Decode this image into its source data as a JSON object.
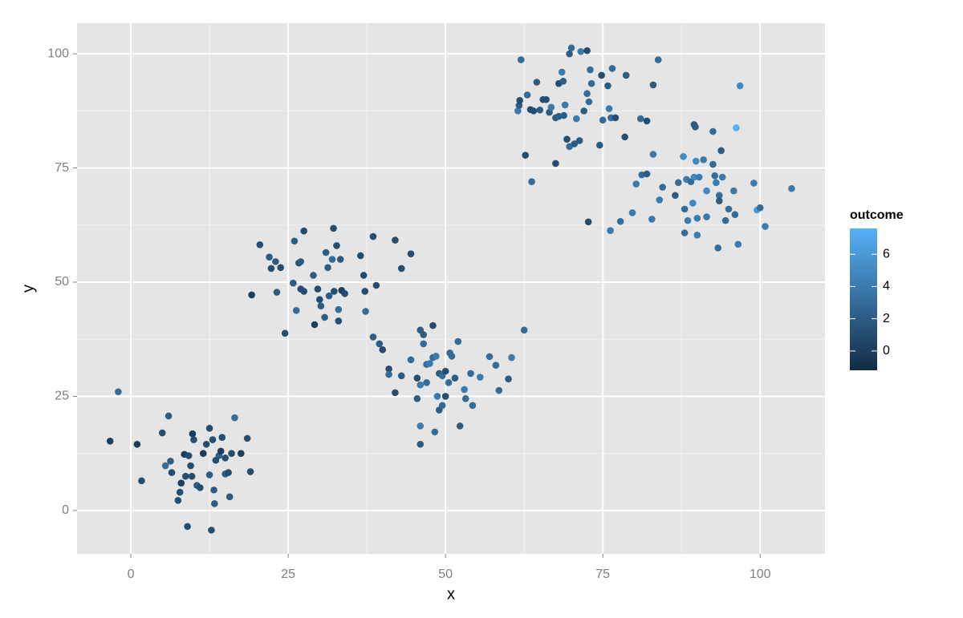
{
  "chart_data": {
    "type": "scatter",
    "xlabel": "x",
    "ylabel": "y",
    "legend_title": "outcome",
    "xlim": [
      -8.55,
      110.3
    ],
    "ylim": [
      -9.5,
      106.7
    ],
    "xticks": [
      0,
      25,
      50,
      75,
      100
    ],
    "yticks": [
      0,
      25,
      50,
      75,
      100
    ],
    "grid": true,
    "color_scale": {
      "low": "#132B43",
      "high": "#56B1F7",
      "lim": [
        -1.2,
        7.6
      ],
      "ticks": [
        0,
        2,
        4,
        6
      ]
    },
    "x": [
      -3.3,
      -2,
      1,
      1.7,
      5,
      5.5,
      6,
      6.3,
      6.5,
      7.5,
      7.8,
      8,
      8.5,
      8.7,
      9,
      9.2,
      9.5,
      9.7,
      9.8,
      10,
      10.5,
      11,
      11.5,
      12,
      12.5,
      12.5,
      12.8,
      13,
      13.2,
      13.3,
      13.5,
      14,
      14.3,
      14.5,
      15,
      15,
      15.5,
      15.7,
      16,
      16.5,
      17.5,
      18.5,
      19,
      19.2,
      20.5,
      22,
      22.3,
      23,
      23.2,
      23.8,
      24.5,
      25.8,
      26,
      26.3,
      26.7,
      27,
      27,
      27.5,
      27.5,
      29,
      29.2,
      29.7,
      30,
      30.2,
      30.8,
      31,
      31.3,
      31.5,
      32,
      32.2,
      32.3,
      32.7,
      33,
      33,
      33.3,
      33.5,
      34,
      36.5,
      37,
      37.3,
      38.5,
      39,
      42,
      43,
      44.5,
      37.2,
      38.5,
      39.5,
      40,
      41,
      41,
      42,
      43,
      44.5,
      45.5,
      45.5,
      46,
      46,
      46,
      46,
      46.5,
      46.5,
      47,
      47,
      47.5,
      48,
      48,
      48.3,
      48.5,
      48.7,
      49,
      49,
      49.5,
      49.5,
      50,
      50,
      50.5,
      50.7,
      51,
      51.5,
      52,
      52.3,
      53,
      53.2,
      54,
      54.3,
      55.5,
      57,
      58,
      58.5,
      60,
      60.5,
      62.5,
      61.5,
      61.7,
      61.8,
      62,
      62.7,
      63,
      63.5,
      63.7,
      64,
      64.5,
      65,
      65.5,
      66,
      66.5,
      66.8,
      67.5,
      67.5,
      68,
      68,
      68.5,
      68.7,
      68.8,
      69,
      69.3,
      69.7,
      69.7,
      70,
      70.5,
      70.8,
      71.3,
      71.5,
      72,
      72.5,
      72.5,
      72.7,
      72.8,
      73,
      73.2,
      74.5,
      74.8,
      75,
      75.8,
      76,
      76.3,
      76.5,
      77,
      78.5,
      78.7,
      81,
      82,
      83,
      83.8,
      76.2,
      77.8,
      79.7,
      80.3,
      81.2,
      82,
      82.8,
      83,
      84,
      84.5,
      86.5,
      87,
      87.8,
      88,
      88,
      88.3,
      88.5,
      89,
      89.3,
      89.5,
      89.5,
      89.7,
      89.8,
      90,
      90,
      90.3,
      91,
      91.5,
      91.5,
      92.5,
      92.5,
      92.8,
      93,
      93.3,
      93.5,
      93.5,
      93.8,
      94,
      94.5,
      95,
      95.8,
      96,
      96.2,
      96.5,
      96.8,
      99,
      99.5,
      100,
      100.8,
      105
    ],
    "y": [
      15.2,
      26,
      14.5,
      6.5,
      17,
      9.8,
      20.7,
      10.8,
      8.3,
      2.2,
      4,
      6,
      12.3,
      7.5,
      -3.5,
      12,
      9.8,
      7.5,
      16.8,
      15.5,
      5.5,
      5,
      12.5,
      14.5,
      18,
      7.8,
      -4.3,
      15.5,
      4.5,
      1.5,
      11,
      12,
      13,
      16,
      8,
      11.5,
      8.3,
      3,
      12.5,
      20.3,
      12.5,
      15.8,
      8.5,
      47.2,
      58.2,
      55.5,
      53,
      54.5,
      47.8,
      53.2,
      38.8,
      49.8,
      59,
      43.8,
      54.2,
      48.5,
      54.5,
      48,
      61.2,
      51.5,
      40.7,
      48.5,
      46.2,
      44.8,
      42.3,
      56.5,
      53.2,
      47,
      55,
      61.8,
      48,
      58,
      41.5,
      44,
      55,
      48.2,
      47.5,
      55.8,
      51.5,
      43.6,
      60,
      49.3,
      59.2,
      53,
      56.2,
      48,
      38,
      36.5,
      35.2,
      31,
      29.8,
      25.8,
      29.5,
      33,
      24.5,
      29,
      39.5,
      27.5,
      18.5,
      14.5,
      38.5,
      36.5,
      32,
      28,
      32.2,
      40.5,
      33.5,
      17.2,
      33.8,
      25,
      30,
      22,
      29.5,
      23,
      30.5,
      25,
      28,
      34.5,
      33.8,
      29,
      37,
      18.5,
      26.5,
      24.5,
      30,
      23,
      29.2,
      33.7,
      31.8,
      26.3,
      28.8,
      33.5,
      39.5,
      87.5,
      88.7,
      89.8,
      98.7,
      77.8,
      91,
      87.8,
      72,
      87.5,
      93.8,
      87.7,
      90,
      90,
      87.2,
      88.3,
      76,
      86,
      86.3,
      93.5,
      96,
      94,
      86.5,
      88.8,
      81.3,
      79.7,
      100,
      101.3,
      80.3,
      85.8,
      81,
      100.5,
      87.5,
      91.3,
      100.7,
      63.2,
      89.5,
      96.5,
      93.5,
      80,
      95.3,
      85.5,
      93,
      88,
      86,
      96.8,
      86,
      81.8,
      95.3,
      85.8,
      85.3,
      93.2,
      98.7,
      61.3,
      63.3,
      65.2,
      71.5,
      73.5,
      73.7,
      63.8,
      78,
      68,
      70.8,
      69,
      71.8,
      77.5,
      66,
      60.8,
      72.5,
      63.5,
      72,
      67.3,
      73,
      84.5,
      84,
      76.5,
      64,
      60.3,
      73,
      76.8,
      70,
      64.3,
      83,
      75.8,
      73.3,
      71.8,
      57.5,
      69,
      67.8,
      78.8,
      73,
      63.5,
      66,
      70,
      64.8,
      83.8,
      58.3,
      93,
      71.7,
      65.8,
      66.3,
      62.2,
      70.5
    ],
    "outcome": [
      0,
      3,
      0,
      1,
      1,
      3,
      2,
      2,
      1,
      1,
      1,
      0,
      0,
      1,
      1,
      1,
      1,
      1,
      0,
      1,
      2,
      1,
      0,
      1,
      1,
      2,
      1,
      1,
      2,
      2,
      1,
      2,
      0,
      1,
      2,
      1,
      1,
      2,
      1,
      3,
      0,
      1,
      1,
      0,
      1,
      2,
      1,
      2,
      2,
      1,
      1,
      2,
      2,
      3,
      1,
      1,
      2,
      1,
      1,
      2,
      0,
      1,
      1,
      2,
      2,
      2,
      2,
      2,
      3,
      1,
      1,
      1,
      1,
      3,
      2,
      0,
      1,
      1,
      1,
      3,
      1,
      1,
      1,
      1,
      1,
      1,
      2,
      2,
      1,
      1,
      3,
      1,
      2,
      3,
      2,
      1,
      2,
      4,
      4,
      2,
      2,
      3,
      3,
      3,
      4,
      1,
      3,
      3,
      4,
      4,
      2,
      2,
      3,
      3,
      1,
      1,
      3,
      3,
      3,
      2,
      3,
      2,
      4,
      3,
      3,
      3,
      4,
      3,
      3,
      3,
      2,
      4,
      3,
      4,
      2,
      1,
      3,
      1,
      3,
      1,
      3,
      1,
      2,
      2,
      1,
      1,
      2,
      4,
      1,
      2,
      2,
      1,
      4,
      2,
      2,
      4,
      1,
      3,
      2,
      3,
      2,
      4,
      2,
      4,
      2,
      3,
      1,
      1,
      3,
      3,
      3,
      2,
      1,
      3,
      2,
      4,
      3,
      3,
      1,
      1,
      2,
      3,
      1,
      2,
      3,
      4,
      3,
      4,
      4,
      3,
      2,
      4,
      4,
      4,
      3,
      2,
      3,
      5,
      3,
      3,
      4,
      4,
      3,
      5,
      5,
      2,
      2,
      5,
      4,
      4,
      4,
      4,
      5,
      4,
      3,
      3,
      3,
      4,
      3,
      3,
      2,
      2,
      4,
      3,
      3,
      4,
      3,
      7.5,
      4,
      5,
      4,
      6,
      3,
      4,
      4
    ]
  }
}
